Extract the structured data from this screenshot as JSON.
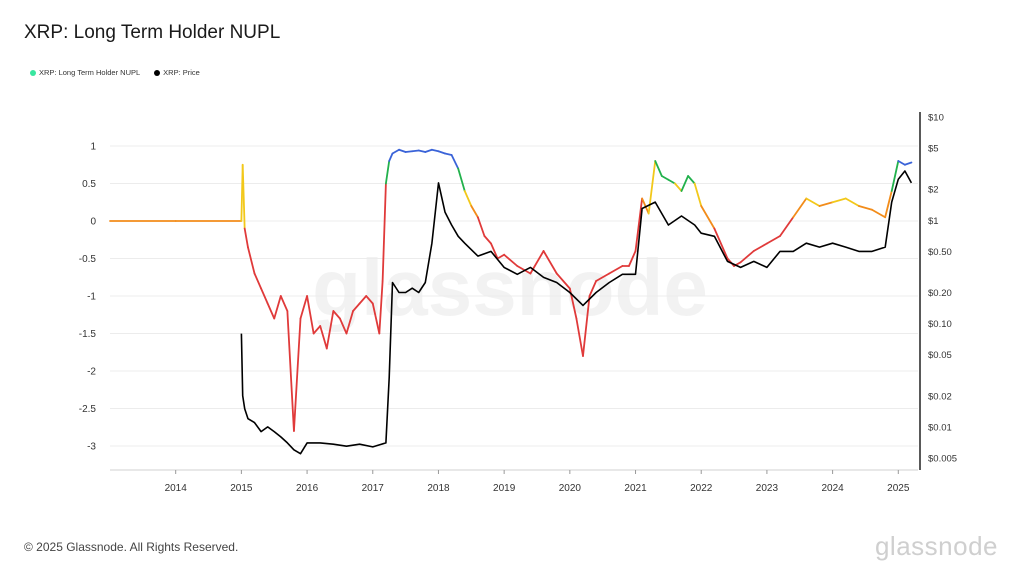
{
  "title": "XRP: Long Term Holder NUPL",
  "legend": [
    {
      "label": "XRP: Long Term Holder NUPL",
      "color": "#39e6a0"
    },
    {
      "label": "XRP: Price",
      "color": "#000000"
    }
  ],
  "footer": "© 2025 Glassnode. All Rights Reserved.",
  "brand": "glassnode",
  "watermark": "glassnode",
  "chart_data": {
    "type": "line",
    "title": "XRP: Long Term Holder NUPL",
    "left_axis": {
      "ticks": [
        "1",
        "0.5",
        "0",
        "-0.5",
        "-1",
        "-1.5",
        "-2",
        "-2.5",
        "-3"
      ],
      "ylim": [
        -3.3,
        1.2
      ]
    },
    "right_axis": {
      "ticks": [
        "$10",
        "$5",
        "$2",
        "$1",
        "$0.50",
        "$0.20",
        "$0.10",
        "$0.05",
        "$0.02",
        "$0.01",
        "$0.005"
      ],
      "scale": "log"
    },
    "x_ticks": [
      "2014",
      "2015",
      "2016",
      "2017",
      "2018",
      "2019",
      "2020",
      "2021",
      "2022",
      "2023",
      "2024",
      "2025"
    ],
    "grid": true,
    "legend_position": "top-left",
    "series": [
      {
        "name": "XRP: Long Term Holder NUPL",
        "axis": "left",
        "colors": {
          "capitulation": "#e03a3a",
          "hope": "#f28c1a",
          "optimism": "#f2c81a",
          "belief": "#22b14c",
          "euphoria": "#3a63d8"
        },
        "x": [
          2013.0,
          2014.0,
          2015.0,
          2015.02,
          2015.05,
          2015.1,
          2015.2,
          2015.3,
          2015.4,
          2015.5,
          2015.6,
          2015.7,
          2015.8,
          2015.9,
          2016.0,
          2016.1,
          2016.2,
          2016.3,
          2016.4,
          2016.5,
          2016.6,
          2016.7,
          2016.8,
          2016.9,
          2017.0,
          2017.1,
          2017.15,
          2017.2,
          2017.25,
          2017.3,
          2017.4,
          2017.5,
          2017.6,
          2017.7,
          2017.8,
          2017.9,
          2018.0,
          2018.1,
          2018.2,
          2018.3,
          2018.4,
          2018.5,
          2018.6,
          2018.7,
          2018.8,
          2018.9,
          2019.0,
          2019.2,
          2019.4,
          2019.6,
          2019.8,
          2020.0,
          2020.1,
          2020.2,
          2020.3,
          2020.4,
          2020.6,
          2020.8,
          2020.9,
          2021.0,
          2021.1,
          2021.2,
          2021.3,
          2021.4,
          2021.5,
          2021.6,
          2021.7,
          2021.8,
          2021.9,
          2022.0,
          2022.2,
          2022.4,
          2022.5,
          2022.6,
          2022.8,
          2023.0,
          2023.2,
          2023.4,
          2023.6,
          2023.8,
          2024.0,
          2024.2,
          2024.4,
          2024.6,
          2024.8,
          2024.9,
          2025.0,
          2025.1,
          2025.2
        ],
        "y": [
          0,
          0,
          0,
          0.75,
          -0.1,
          -0.35,
          -0.7,
          -0.9,
          -1.1,
          -1.3,
          -1.0,
          -1.2,
          -2.8,
          -1.3,
          -1.0,
          -1.5,
          -1.4,
          -1.7,
          -1.2,
          -1.3,
          -1.5,
          -1.2,
          -1.1,
          -1.0,
          -1.1,
          -1.5,
          -0.8,
          0.5,
          0.8,
          0.9,
          0.95,
          0.92,
          0.93,
          0.94,
          0.92,
          0.95,
          0.93,
          0.9,
          0.88,
          0.7,
          0.4,
          0.2,
          0.05,
          -0.2,
          -0.3,
          -0.5,
          -0.45,
          -0.6,
          -0.7,
          -0.4,
          -0.7,
          -0.9,
          -1.3,
          -1.8,
          -1.0,
          -0.8,
          -0.7,
          -0.6,
          -0.6,
          -0.4,
          0.3,
          0.1,
          0.8,
          0.6,
          0.55,
          0.5,
          0.4,
          0.6,
          0.5,
          0.2,
          -0.1,
          -0.5,
          -0.6,
          -0.55,
          -0.4,
          -0.3,
          -0.2,
          0.05,
          0.3,
          0.2,
          0.25,
          0.3,
          0.2,
          0.15,
          0.05,
          0.4,
          0.8,
          0.75,
          0.78
        ]
      },
      {
        "name": "XRP: Price",
        "axis": "right",
        "x": [
          2015.0,
          2015.02,
          2015.05,
          2015.1,
          2015.2,
          2015.3,
          2015.4,
          2015.5,
          2015.6,
          2015.7,
          2015.8,
          2015.9,
          2016.0,
          2016.2,
          2016.4,
          2016.6,
          2016.8,
          2017.0,
          2017.1,
          2017.2,
          2017.25,
          2017.3,
          2017.4,
          2017.5,
          2017.6,
          2017.7,
          2017.8,
          2017.9,
          2018.0,
          2018.1,
          2018.2,
          2018.3,
          2018.4,
          2018.6,
          2018.8,
          2019.0,
          2019.2,
          2019.4,
          2019.6,
          2019.8,
          2020.0,
          2020.2,
          2020.4,
          2020.6,
          2020.8,
          2021.0,
          2021.1,
          2021.3,
          2021.5,
          2021.7,
          2021.9,
          2022.0,
          2022.2,
          2022.4,
          2022.6,
          2022.8,
          2023.0,
          2023.2,
          2023.4,
          2023.6,
          2023.8,
          2024.0,
          2024.2,
          2024.4,
          2024.6,
          2024.8,
          2024.9,
          2025.0,
          2025.1,
          2025.2
        ],
        "y": [
          0.08,
          0.02,
          0.015,
          0.012,
          0.011,
          0.009,
          0.01,
          0.009,
          0.008,
          0.007,
          0.006,
          0.0055,
          0.007,
          0.007,
          0.0068,
          0.0065,
          0.0068,
          0.0064,
          0.0067,
          0.007,
          0.03,
          0.25,
          0.2,
          0.2,
          0.22,
          0.2,
          0.25,
          0.6,
          2.3,
          1.2,
          0.9,
          0.7,
          0.6,
          0.45,
          0.5,
          0.35,
          0.3,
          0.35,
          0.28,
          0.25,
          0.2,
          0.15,
          0.2,
          0.25,
          0.3,
          0.3,
          1.3,
          1.5,
          0.9,
          1.1,
          0.9,
          0.75,
          0.7,
          0.4,
          0.35,
          0.4,
          0.35,
          0.5,
          0.5,
          0.6,
          0.55,
          0.6,
          0.55,
          0.5,
          0.5,
          0.55,
          1.5,
          2.5,
          3.0,
          2.3
        ]
      }
    ]
  }
}
